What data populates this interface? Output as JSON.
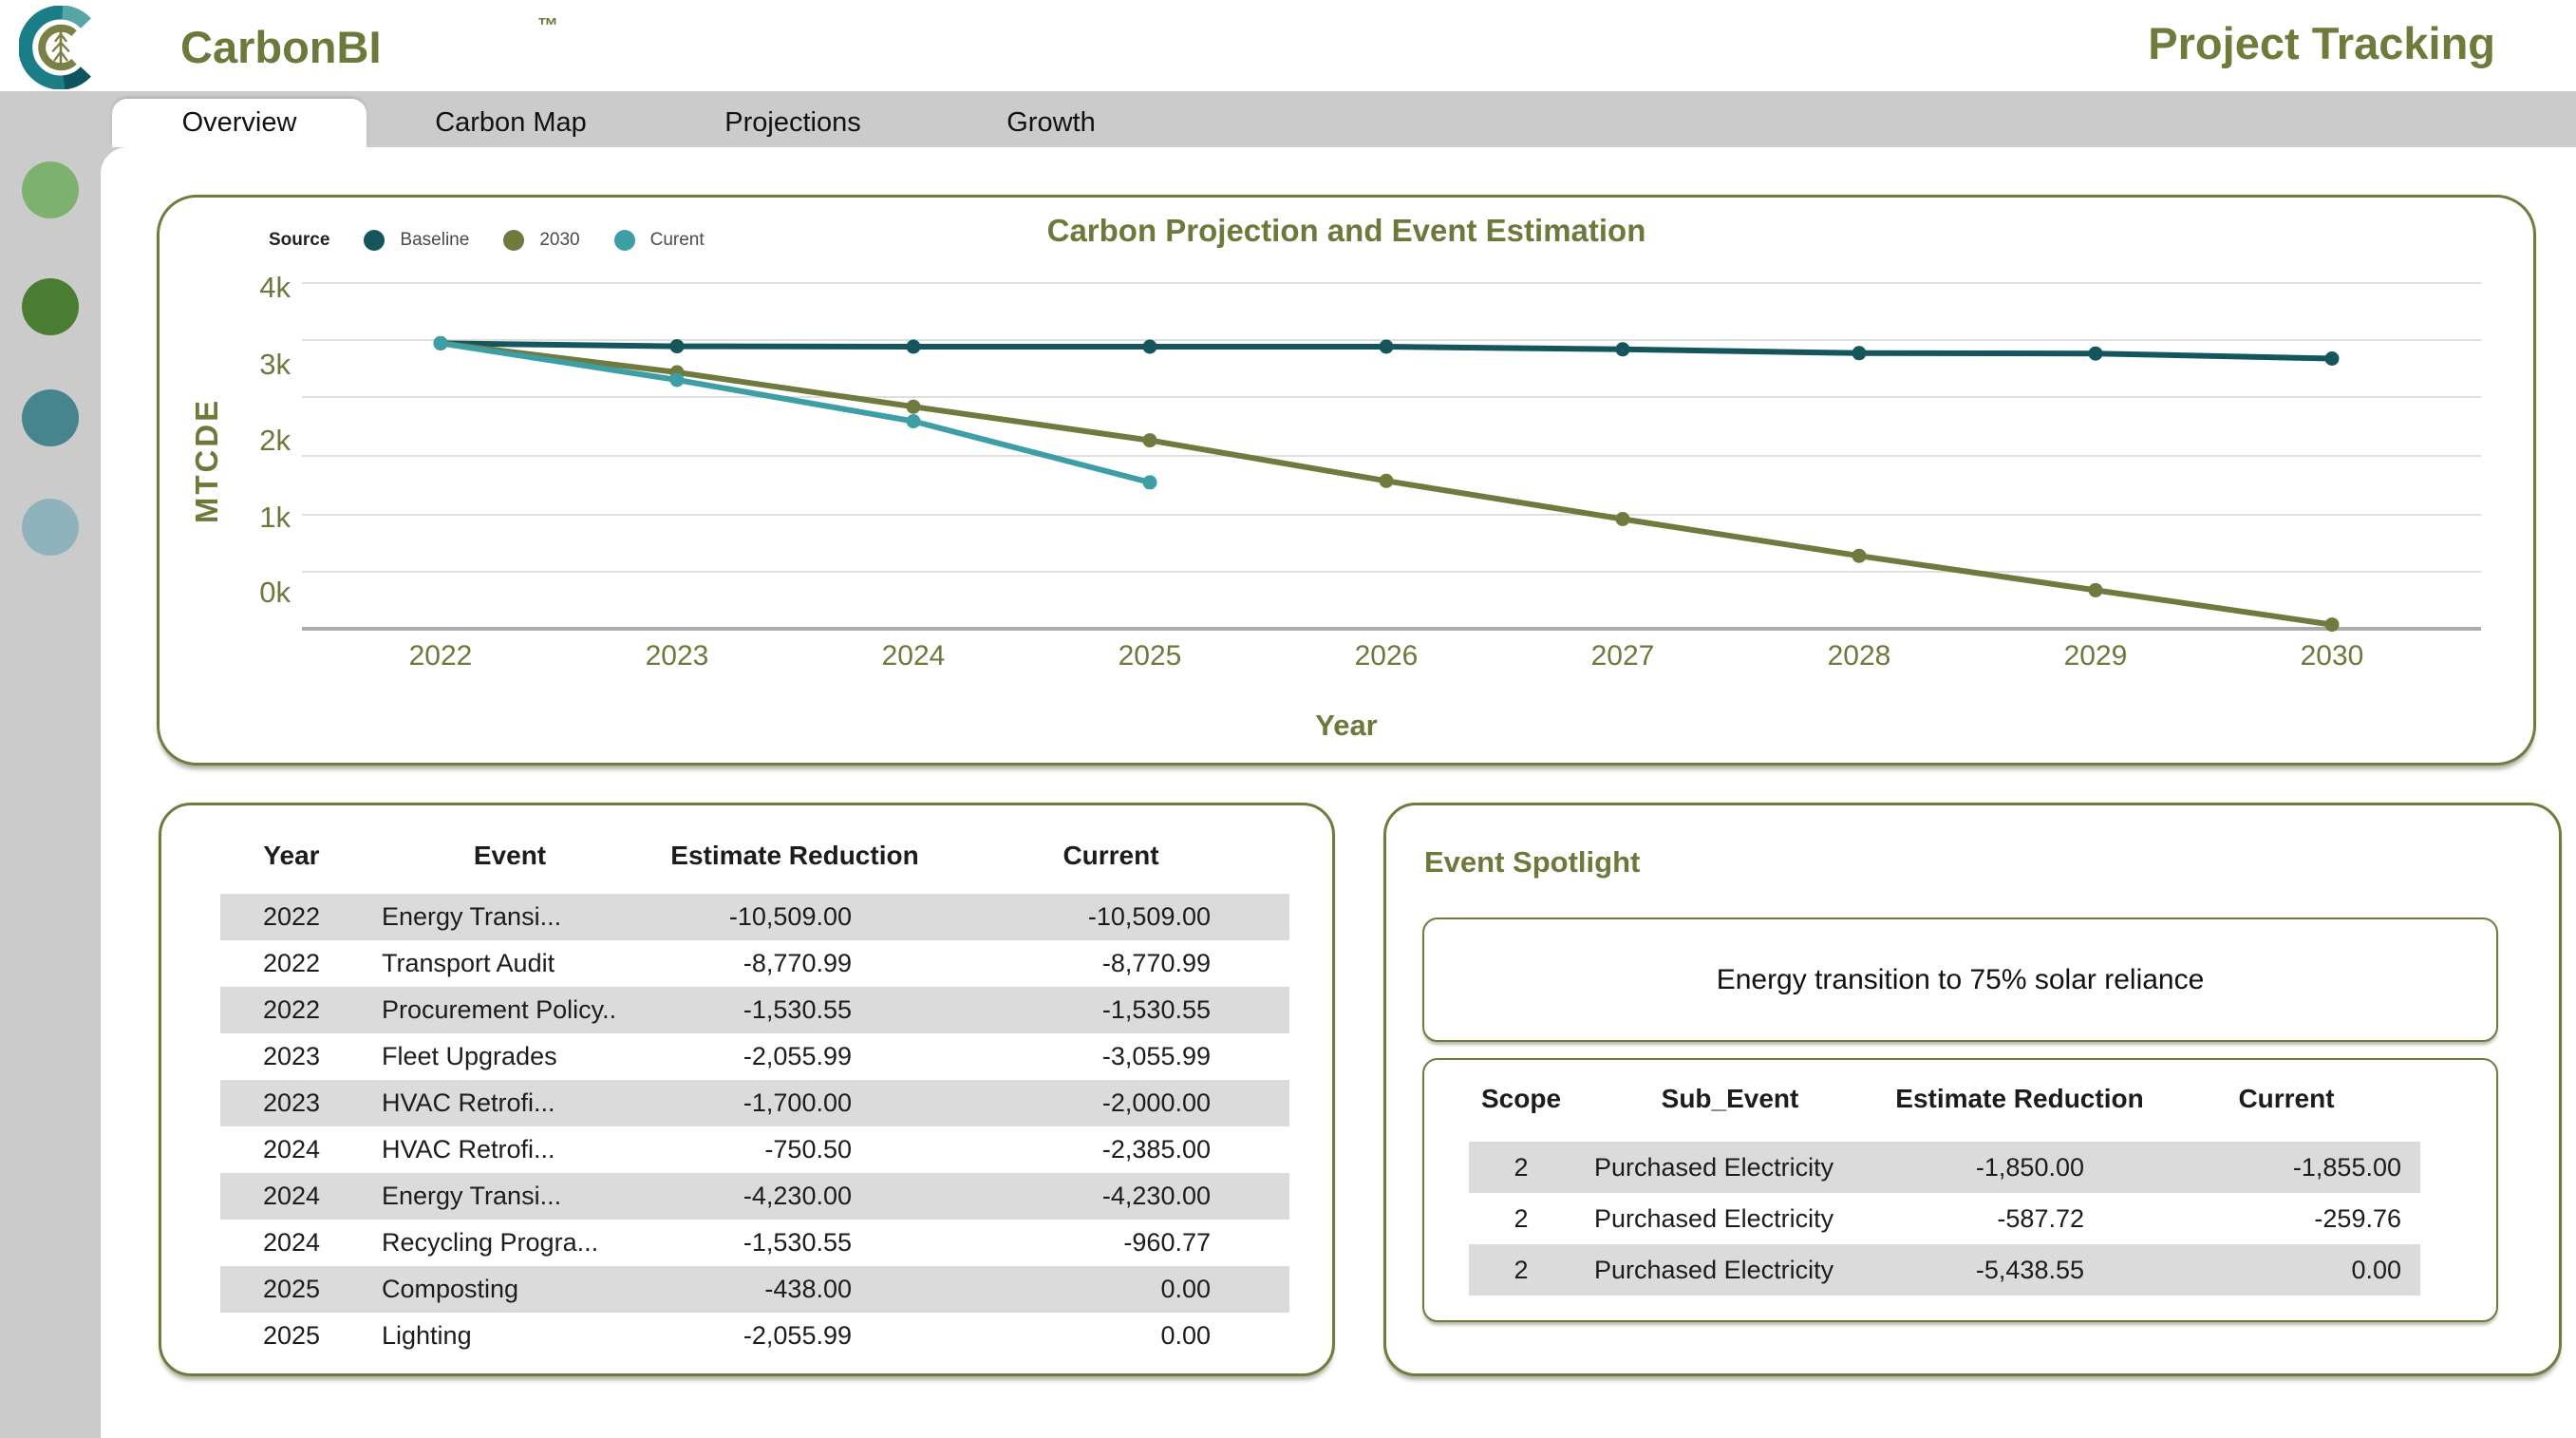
{
  "header": {
    "brand": "CarbonBI",
    "trademark": "™",
    "page_title": "Project Tracking"
  },
  "tabs": [
    {
      "label": "Overview",
      "active": true
    },
    {
      "label": "Carbon Map",
      "active": false
    },
    {
      "label": "Projections",
      "active": false
    },
    {
      "label": "Growth",
      "active": false
    }
  ],
  "sidebar": {
    "circles": [
      {
        "name": "light-green",
        "color": "#7FB16E"
      },
      {
        "name": "dark-green",
        "color": "#4A7D31"
      },
      {
        "name": "teal",
        "color": "#46858E"
      },
      {
        "name": "light-blue",
        "color": "#8FB3BC"
      }
    ]
  },
  "chart_data": {
    "type": "line",
    "title": "Carbon Projection and Event Estimation",
    "legend_title": "Source",
    "xlabel": "Year",
    "ylabel": "MTCDE",
    "x": [
      2022,
      2023,
      2024,
      2025,
      2026,
      2027,
      2028,
      2029,
      2030
    ],
    "y_ticks": [
      "4k",
      "3k",
      "2k",
      "1k",
      "0k"
    ],
    "ylim": [
      -500,
      4000
    ],
    "grid": true,
    "legend_position": "top-left",
    "series": [
      {
        "name": "Baseline",
        "color": "#15565C",
        "values": [
          3250,
          3210,
          3205,
          3205,
          3205,
          3170,
          3120,
          3115,
          3050
        ]
      },
      {
        "name": "2030",
        "color": "#6F7A3E",
        "values": [
          3250,
          2870,
          2420,
          1980,
          1450,
          950,
          470,
          20,
          -430
        ]
      },
      {
        "name": "Curent",
        "color": "#3D9EA6",
        "values": [
          3250,
          2770,
          2230,
          1430
        ]
      }
    ]
  },
  "events_table": {
    "headers": [
      "Year",
      "Event",
      "Estimate Reduction",
      "Current"
    ],
    "rows": [
      [
        "2022",
        "Energy Transi...",
        "-10,509.00",
        "-10,509.00"
      ],
      [
        "2022",
        "Transport Audit",
        "-8,770.99",
        "-8,770.99"
      ],
      [
        "2022",
        "Procurement Policy..",
        "-1,530.55",
        "-1,530.55"
      ],
      [
        "2023",
        "Fleet Upgrades",
        "-2,055.99",
        "-3,055.99"
      ],
      [
        "2023",
        "HVAC Retrofi...",
        "-1,700.00",
        "-2,000.00"
      ],
      [
        "2024",
        "HVAC Retrofi...",
        "-750.50",
        "-2,385.00"
      ],
      [
        "2024",
        "Energy Transi...",
        "-4,230.00",
        "-4,230.00"
      ],
      [
        "2024",
        "Recycling Progra...",
        "-1,530.55",
        "-960.77"
      ],
      [
        "2025",
        "Composting",
        "-438.00",
        "0.00"
      ],
      [
        "2025",
        "Lighting",
        "-2,055.99",
        "0.00"
      ]
    ]
  },
  "spotlight": {
    "title": "Event Spotlight",
    "highlight_text": "Energy transition to 75% solar reliance",
    "table": {
      "headers": [
        "Scope",
        "Sub_Event",
        "Estimate Reduction",
        "Current"
      ],
      "rows": [
        [
          "2",
          "Purchased Electricity",
          "-1,850.00",
          "-1,855.00"
        ],
        [
          "2",
          "Purchased Electricity",
          "-587.72",
          "-259.76"
        ],
        [
          "2",
          "Purchased Electricity",
          "-5,438.55",
          "0.00"
        ]
      ]
    }
  }
}
